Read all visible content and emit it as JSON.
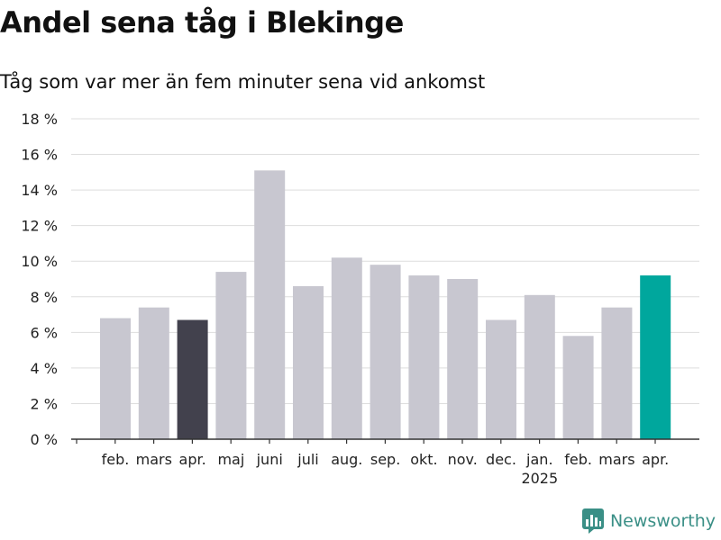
{
  "title": "Andel sena tåg i Blekinge",
  "subtitle": "Tåg som var mer än fem minuter sena vid ankomst",
  "brand": {
    "name": "Newsworthy"
  },
  "colors": {
    "bar": "#c8c7d0",
    "highlight_prev": "#42414d",
    "highlight_current": "#00a79d",
    "grid": "#dddddd",
    "axis": "#333333",
    "brand": "#3a8f86"
  },
  "chart_data": {
    "type": "bar",
    "categories": [
      "feb.",
      "mars",
      "apr.",
      "maj",
      "juni",
      "juli",
      "aug.",
      "sep.",
      "okt.",
      "nov.",
      "dec.",
      "jan.",
      "feb.",
      "mars",
      "apr."
    ],
    "year_labels": [
      {
        "index": 11,
        "label": "2025"
      }
    ],
    "values": [
      6.8,
      7.4,
      6.7,
      9.4,
      15.1,
      8.6,
      10.2,
      9.8,
      9.2,
      9.0,
      6.7,
      8.1,
      5.8,
      7.4,
      9.2
    ],
    "highlight": {
      "2": "highlight_prev",
      "14": "highlight_current"
    },
    "yticks": [
      "0 %",
      "2 %",
      "4 %",
      "6 %",
      "8 %",
      "10 %",
      "12 %",
      "14 %",
      "16 %",
      "18 %"
    ],
    "ylim": [
      0,
      18
    ],
    "grid": true
  }
}
